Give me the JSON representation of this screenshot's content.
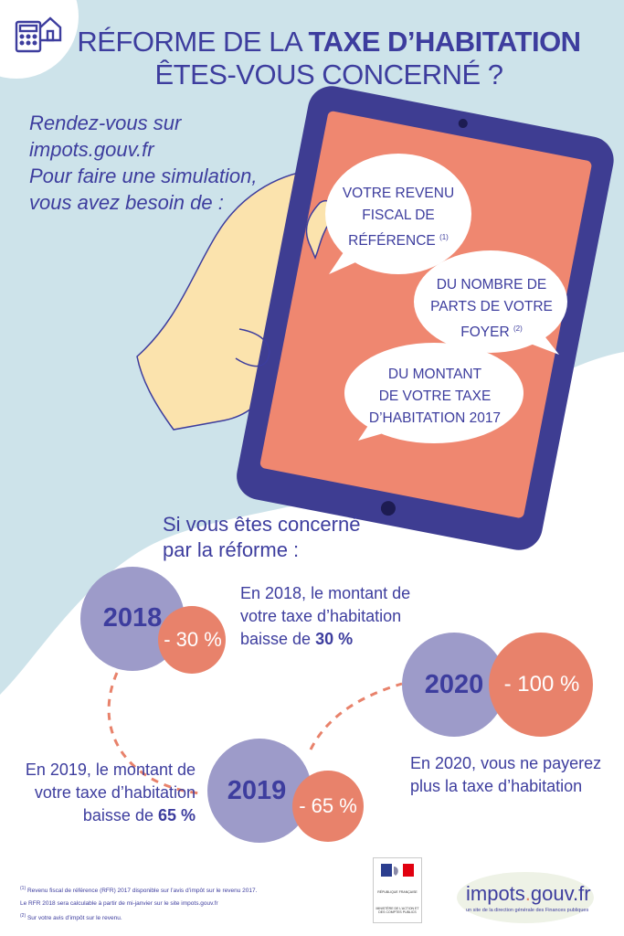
{
  "colors": {
    "navy": "#3d3d9e",
    "light_blue": "#cde3ea",
    "salmon": "#e8826b",
    "lavender": "#9d9bc9",
    "tablet_frame": "#3e3d92",
    "screen": "#ef8770",
    "hand": "#fbe3ad"
  },
  "header": {
    "title_prefix": "RÉFORME DE LA ",
    "title_bold": "TAXE D’HABITATION",
    "title_line2": "ÊTES-VOUS CONCERNÉ ?",
    "icon": "calculator-house-icon"
  },
  "intro": {
    "line1": "Rendez-vous sur",
    "line2": "impots.gouv.fr",
    "line3": "Pour faire une simulation,",
    "line4": "vous avez besoin de :"
  },
  "bubbles": [
    {
      "line1": "VOTRE REVENU",
      "line2": "FISCAL DE",
      "line3": "RÉFÉRENCE",
      "note": "(1)"
    },
    {
      "line1": "DU NOMBRE DE",
      "line2": "PARTS DE VOTRE",
      "line3": "FOYER",
      "note": "(2)"
    },
    {
      "line1": "DU MONTANT",
      "line2": "DE VOTRE TAXE",
      "line3": "D’HABITATION 2017",
      "note": ""
    }
  ],
  "subtitle": {
    "line1": "Si vous êtes concerné",
    "line2": "par la réforme :"
  },
  "timeline": [
    {
      "year": "2018",
      "pct": "- 30 %",
      "desc_line1": "En 2018, le montant de",
      "desc_line2": "votre taxe d’habitation",
      "desc_line3_prefix": "baisse de ",
      "desc_line3_bold": "30 %"
    },
    {
      "year": "2019",
      "pct": "- 65 %",
      "desc_line1": "En 2019, le montant de",
      "desc_line2": "votre taxe d’habitation",
      "desc_line3_prefix": "baisse de ",
      "desc_line3_bold": "65 %"
    },
    {
      "year": "2020",
      "pct": "- 100 %",
      "desc_line1": "En 2020, vous ne payerez",
      "desc_line2": "plus la taxe d’habitation",
      "desc_line3_prefix": "",
      "desc_line3_bold": ""
    }
  ],
  "footnotes": [
    {
      "mark": "(1)",
      "text": "Revenu fiscal de référence (RFR) 2017 disponible sur l’avis d’impôt sur le revenu 2017."
    },
    {
      "mark": "",
      "text": "Le RFR 2018 sera calculable à partir de mi-janvier sur le site impots.gouv.fr"
    },
    {
      "mark": "(2)",
      "text": "Sur votre avis d’impôt sur le revenu."
    }
  ],
  "logos": {
    "ministry": "MINISTÈRE DE L’ACTION ET DES COMPTES PUBLICS",
    "republic": "RÉPUBLIQUE FRANÇAISE",
    "impots_a": "impots",
    "impots_dot": ".",
    "impots_b": "gouv.fr",
    "impots_sub": "un site de la direction générale des Finances publiques"
  }
}
